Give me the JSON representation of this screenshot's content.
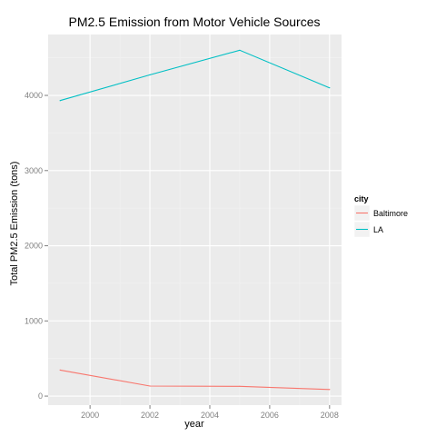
{
  "chart_data": {
    "type": "line",
    "title": "PM2.5 Emission from Motor Vehicle Sources",
    "xlabel": "year",
    "ylabel": "Total PM2.5 Emission (tons)",
    "x": [
      1999,
      2002,
      2005,
      2008
    ],
    "xlim": [
      1998.6,
      2008.4
    ],
    "ylim": [
      -120,
      4810
    ],
    "xticks": [
      2000,
      2002,
      2004,
      2006,
      2008
    ],
    "yticks": [
      0,
      1000,
      2000,
      3000,
      4000
    ],
    "grid": true,
    "legend": {
      "title": "city",
      "position": "right"
    },
    "series": [
      {
        "name": "Baltimore",
        "color": "#F8766D",
        "values": [
          347,
          134,
          130,
          88
        ]
      },
      {
        "name": "LA",
        "color": "#00BFC4",
        "values": [
          3931,
          4274,
          4601,
          4101
        ]
      }
    ],
    "colors": {
      "panel": "#EBEBEB",
      "grid_major": "#FFFFFF",
      "grid_minor": "#F2F2F2"
    }
  }
}
